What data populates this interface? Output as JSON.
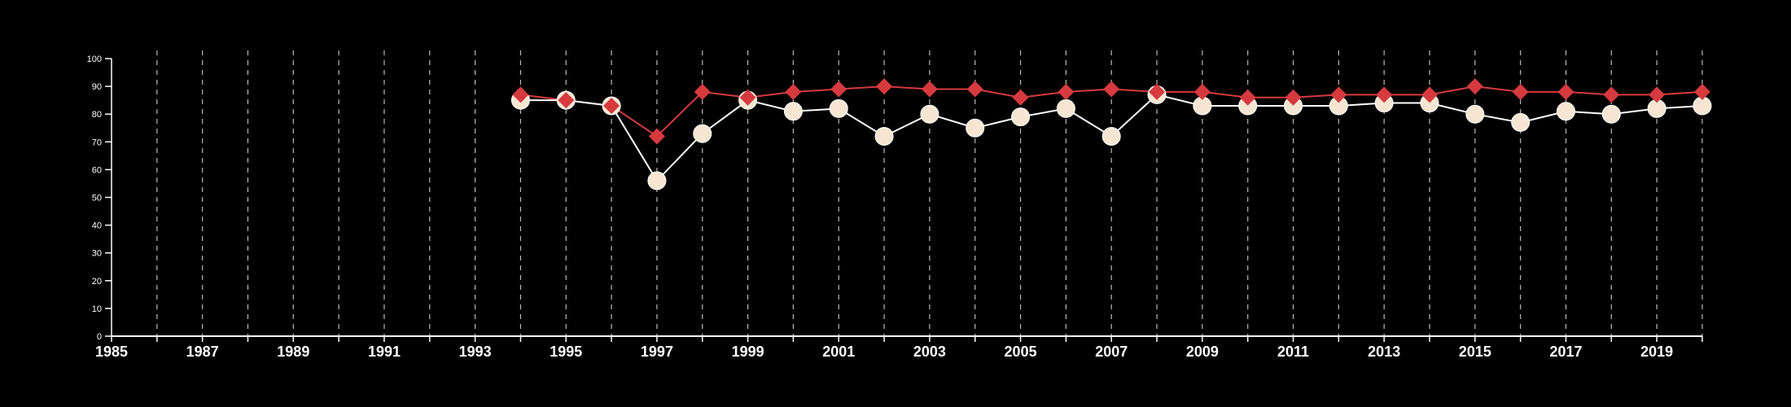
{
  "chart_data": {
    "type": "line",
    "title": "",
    "xlabel": "",
    "ylabel": "",
    "xlim": [
      1985,
      2020
    ],
    "ylim": [
      0,
      100
    ],
    "y_ticks": [
      0,
      10,
      20,
      30,
      40,
      50,
      60,
      70,
      80,
      90,
      100
    ],
    "x_tick_labels": [
      1985,
      1987,
      1989,
      1991,
      1993,
      1995,
      1997,
      1999,
      2001,
      2003,
      2005,
      2007,
      2009,
      2011,
      2013,
      2015,
      2017,
      2019
    ],
    "x_gridlines": [
      1986,
      1987,
      1988,
      1989,
      1990,
      1991,
      1992,
      1993,
      1994,
      1995,
      1996,
      1997,
      1998,
      1999,
      2000,
      2001,
      2002,
      2003,
      2004,
      2005,
      2006,
      2007,
      2008,
      2009,
      2010,
      2011,
      2012,
      2013,
      2014,
      2015,
      2016,
      2017,
      2018,
      2019,
      2020
    ],
    "grid": "vertical dashed",
    "legend": "none",
    "background": "#000000",
    "x": [
      1994,
      1995,
      1996,
      1997,
      1998,
      1999,
      2000,
      2001,
      2002,
      2003,
      2004,
      2005,
      2006,
      2007,
      2008,
      2009,
      2010,
      2011,
      2012,
      2013,
      2014,
      2015,
      2016,
      2017,
      2018,
      2019,
      2020
    ],
    "series": [
      {
        "marker": "diamond",
        "color": "#d63a3f",
        "values": [
          87,
          85,
          83,
          72,
          88,
          86,
          88,
          89,
          90,
          89,
          89,
          86,
          88,
          89,
          88,
          88,
          86,
          86,
          87,
          87,
          87,
          90,
          88,
          88,
          87,
          87,
          88
        ]
      },
      {
        "marker": "circle",
        "color": "#f6e6d1",
        "line_color": "#ffffff",
        "values": [
          85,
          85,
          83,
          56,
          73,
          85,
          81,
          82,
          72,
          80,
          75,
          79,
          82,
          72,
          87,
          83,
          83,
          83,
          83,
          84,
          84,
          80,
          77,
          81,
          80,
          82,
          83
        ]
      }
    ]
  }
}
